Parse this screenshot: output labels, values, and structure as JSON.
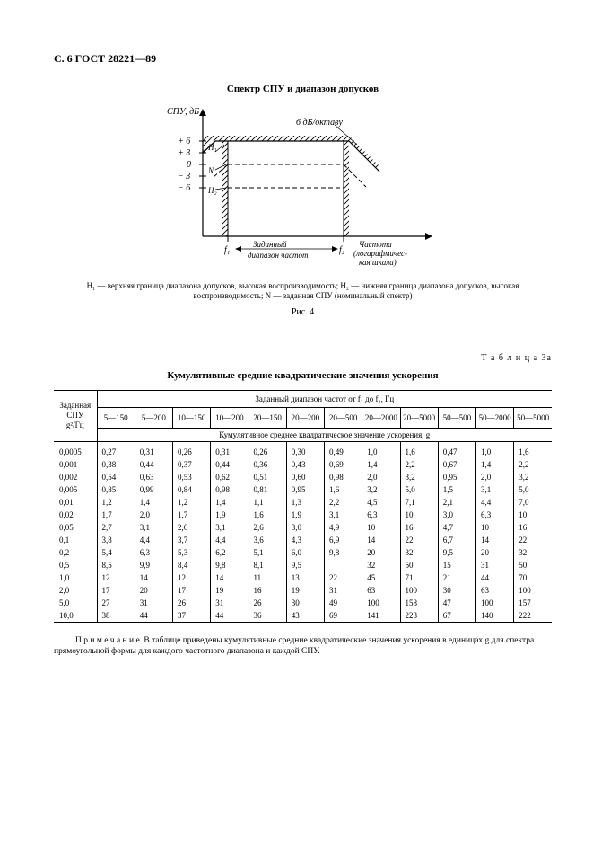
{
  "header": "С. 6 ГОСТ 28221—89",
  "figure": {
    "title": "Спектр СПУ и диапазон допусков",
    "y_axis_label": "СПУ, дБ",
    "y_ticks": [
      "+ 6",
      "+ 3",
      "0",
      "− 3",
      "− 6"
    ],
    "slope_label": "6 дБ/октаву",
    "H1": "Н₁",
    "H2": "Н₂",
    "N": "N",
    "x_f1": "f₁",
    "x_range_label": "Заданный\nдиапазон частот",
    "x_f2": "f₂",
    "x_axis_label": "Частота\n(логарифмичес-\nкая шкала)",
    "caption": "Н₁ — верхняя граница диапазона допусков, высокая воспроизводимость; Н₂ — нижняя граница диапазона допусков, высокая воспроизводимость; N — заданная СПУ (номинальный спектр)",
    "label": "Рис. 4"
  },
  "table": {
    "number": "Т а б л и ц а   3а",
    "title": "Кумулятивные средние квадратические значения ускорения",
    "left_header": "Заданная\nСПУ\ng²/Гц",
    "top_header": "Заданный диапазон частот от f₁ до f₂, Гц",
    "sub_header": "Кумулятивное среднее квадратическое значение ускорения, g",
    "cols": [
      "5—150",
      "5—200",
      "10—150",
      "10—200",
      "20—150",
      "20—200",
      "20—500",
      "20—2000",
      "20—5000",
      "50—500",
      "50—2000",
      "50—5000"
    ],
    "rows": [
      {
        "k": "0,0005",
        "v": [
          "0,27",
          "0,31",
          "0,26",
          "0,31",
          "0,26",
          "0,30",
          "0,49",
          "1,0",
          "1,6",
          "0,47",
          "1,0",
          "1,6"
        ]
      },
      {
        "k": "0,001",
        "v": [
          "0,38",
          "0,44",
          "0,37",
          "0,44",
          "0,36",
          "0,43",
          "0,69",
          "1,4",
          "2,2",
          "0,67",
          "1,4",
          "2,2"
        ]
      },
      {
        "k": "0,002",
        "v": [
          "0,54",
          "0,63",
          "0,53",
          "0,62",
          "0,51",
          "0,60",
          "0,98",
          "2,0",
          "3,2",
          "0,95",
          "2,0",
          "3,2"
        ]
      },
      {
        "k": "0,005",
        "v": [
          "0,85",
          "0,99",
          "0,84",
          "0,98",
          "0,81",
          "0,95",
          "1,6",
          "3,2",
          "5,0",
          "1,5",
          "3,1",
          "5,0"
        ]
      },
      {
        "k": "0,01",
        "v": [
          "1,2",
          "1,4",
          "1,2",
          "1,4",
          "1,1",
          "1,3",
          "2,2",
          "4,5",
          "7,1",
          "2,1",
          "4,4",
          "7,0"
        ]
      },
      {
        "k": "0,02",
        "v": [
          "1,7",
          "2,0",
          "1,7",
          "1,9",
          "1,6",
          "1,9",
          "3,1",
          "6,3",
          "10",
          "3,0",
          "6,3",
          "10"
        ]
      },
      {
        "k": "0,05",
        "v": [
          "2,7",
          "3,1",
          "2,6",
          "3,1",
          "2,6",
          "3,0",
          "4,9",
          "10",
          "16",
          "4,7",
          "10",
          "16"
        ]
      },
      {
        "k": "0,1",
        "v": [
          "3,8",
          "4,4",
          "3,7",
          "4,4",
          "3,6",
          "4,3",
          "6,9",
          "14",
          "22",
          "6,7",
          "14",
          "22"
        ]
      },
      {
        "k": "0,2",
        "v": [
          "5,4",
          "6,3",
          "5,3",
          "6,2",
          "5,1",
          "6,0",
          "9,8",
          "20",
          "32",
          "9,5",
          "20",
          "32"
        ]
      },
      {
        "k": "0,5",
        "v": [
          "8,5",
          "9,9",
          "8,4",
          "9,8",
          "8,1",
          "9,5",
          "",
          "32",
          "50",
          "15",
          "31",
          "50"
        ]
      },
      {
        "k": "1,0",
        "v": [
          "12",
          "14",
          "12",
          "14",
          "11",
          "13",
          "22",
          "45",
          "71",
          "21",
          "44",
          "70"
        ]
      },
      {
        "k": "2,0",
        "v": [
          "17",
          "20",
          "17",
          "19",
          "16",
          "19",
          "31",
          "63",
          "100",
          "30",
          "63",
          "100"
        ]
      },
      {
        "k": "5,0",
        "v": [
          "27",
          "31",
          "26",
          "31",
          "26",
          "30",
          "49",
          "100",
          "158",
          "47",
          "100",
          "157"
        ]
      },
      {
        "k": "10,0",
        "v": [
          "38",
          "44",
          "37",
          "44",
          "36",
          "43",
          "69",
          "141",
          "223",
          "67",
          "140",
          "222"
        ]
      }
    ],
    "note": "П р и м е ч а н и е.  В таблице приведены кумулятивные средние квадратические значения ускорения в единицах g для спектра прямоугольной формы для каждого частотного диапазона и каждой СПУ."
  }
}
